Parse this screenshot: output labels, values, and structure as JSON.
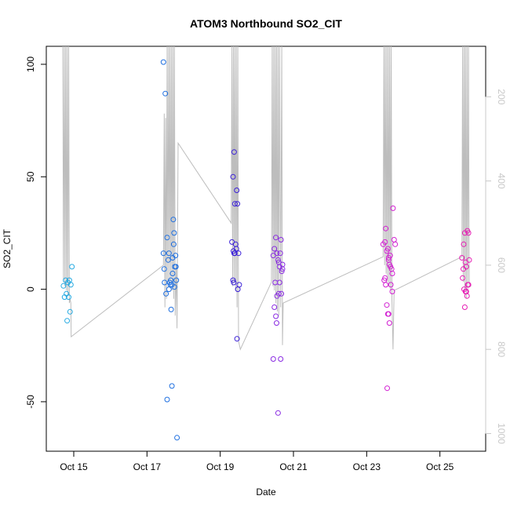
{
  "chart_data": {
    "type": "scatter",
    "title": "ATOM3 Northbound SO2_CIT",
    "xlabel": "Date",
    "ylabel": "SO2_CIT",
    "x_ticks": [
      "Oct 15",
      "Oct 17",
      "Oct 19",
      "Oct 21",
      "Oct 23",
      "Oct 25"
    ],
    "x_tick_days": [
      15,
      17,
      19,
      21,
      23,
      25
    ],
    "xlim_days": [
      14.25,
      26.25
    ],
    "ylim": [
      -72,
      108
    ],
    "y_ticks": [
      -50,
      0,
      50,
      100
    ],
    "y2_ticks": [
      200,
      400,
      600,
      800,
      1000
    ],
    "y2lim": [
      1042,
      80
    ],
    "y2_color": "#c8c8c8",
    "line_color": "#bdbdbd",
    "point_colors": {
      "Oct 14-15": "#27aae1",
      "Oct 17": "#1e6fe0",
      "Oct 19": "#3a1fd8",
      "Oct 20-21": "#8a2be2",
      "Oct 23": "#d21fd2",
      "Oct 25": "#e61fb4"
    },
    "series": [
      {
        "color": "#27aae1",
        "points": [
          [
            14.72,
            1.5
          ],
          [
            14.75,
            -3.5
          ],
          [
            14.78,
            4
          ],
          [
            14.8,
            -2
          ],
          [
            14.82,
            -14
          ],
          [
            14.84,
            3
          ],
          [
            14.86,
            -3.5
          ],
          [
            14.88,
            4
          ],
          [
            14.9,
            -10
          ],
          [
            14.92,
            2
          ],
          [
            14.95,
            10
          ]
        ]
      },
      {
        "color": "#1e6fe0",
        "points": [
          [
            17.45,
            101
          ],
          [
            17.5,
            87
          ],
          [
            17.45,
            16
          ],
          [
            17.48,
            3
          ],
          [
            17.52,
            -2
          ],
          [
            17.47,
            9
          ],
          [
            17.55,
            23
          ],
          [
            17.58,
            13
          ],
          [
            17.6,
            16
          ],
          [
            17.62,
            3
          ],
          [
            17.64,
            2
          ],
          [
            17.66,
            -9
          ],
          [
            17.6,
            0
          ],
          [
            17.65,
            4
          ],
          [
            17.68,
            2
          ],
          [
            17.7,
            14
          ],
          [
            17.72,
            31
          ],
          [
            17.74,
            25
          ],
          [
            17.76,
            10
          ],
          [
            17.78,
            15
          ],
          [
            17.8,
            4
          ],
          [
            17.7,
            7
          ],
          [
            17.68,
            -43
          ],
          [
            17.55,
            -49
          ],
          [
            17.82,
            -66
          ],
          [
            17.75,
            1
          ],
          [
            17.73,
            20
          ],
          [
            17.79,
            10
          ]
        ]
      },
      {
        "color": "#3a1fd8",
        "points": [
          [
            19.35,
            50
          ],
          [
            19.38,
            61
          ],
          [
            19.4,
            38
          ],
          [
            19.45,
            44
          ],
          [
            19.47,
            38
          ],
          [
            19.32,
            21
          ],
          [
            19.36,
            17
          ],
          [
            19.42,
            20
          ],
          [
            19.38,
            16
          ],
          [
            19.44,
            18
          ],
          [
            19.5,
            16
          ],
          [
            19.4,
            16
          ],
          [
            19.35,
            4
          ],
          [
            19.37,
            3
          ],
          [
            19.48,
            0
          ],
          [
            19.52,
            2
          ],
          [
            19.46,
            -22
          ]
        ]
      },
      {
        "color": "#8a2be2",
        "points": [
          [
            20.45,
            15
          ],
          [
            20.48,
            18
          ],
          [
            20.52,
            23
          ],
          [
            20.55,
            16
          ],
          [
            20.58,
            13
          ],
          [
            20.6,
            12
          ],
          [
            20.62,
            10
          ],
          [
            20.66,
            22
          ],
          [
            20.7,
            11
          ],
          [
            20.68,
            8
          ],
          [
            20.64,
            16
          ],
          [
            20.5,
            3
          ],
          [
            20.55,
            -3
          ],
          [
            20.6,
            -2
          ],
          [
            20.48,
            -8
          ],
          [
            20.52,
            -12
          ],
          [
            20.54,
            -15
          ],
          [
            20.45,
            -31
          ],
          [
            20.65,
            -31
          ],
          [
            20.58,
            -55
          ],
          [
            20.7,
            9
          ],
          [
            20.62,
            3
          ],
          [
            20.67,
            -2
          ]
        ]
      },
      {
        "color": "#d21fd2",
        "points": [
          [
            23.45,
            20
          ],
          [
            23.5,
            21
          ],
          [
            23.52,
            27
          ],
          [
            23.55,
            17
          ],
          [
            23.58,
            18
          ],
          [
            23.6,
            14
          ],
          [
            23.62,
            11
          ],
          [
            23.65,
            10
          ],
          [
            23.68,
            9
          ],
          [
            23.7,
            7
          ],
          [
            23.72,
            36
          ],
          [
            23.75,
            22
          ],
          [
            23.78,
            20
          ],
          [
            23.5,
            5
          ],
          [
            23.52,
            2
          ],
          [
            23.48,
            4
          ],
          [
            23.55,
            -7
          ],
          [
            23.58,
            -11
          ],
          [
            23.6,
            -11
          ],
          [
            23.62,
            -15
          ],
          [
            23.56,
            -44
          ],
          [
            23.66,
            2
          ],
          [
            23.7,
            -1
          ],
          [
            23.64,
            15
          ],
          [
            23.6,
            13
          ]
        ]
      },
      {
        "color": "#e61fb4",
        "points": [
          [
            25.6,
            14
          ],
          [
            25.65,
            20
          ],
          [
            25.68,
            25
          ],
          [
            25.7,
            12
          ],
          [
            25.72,
            10
          ],
          [
            25.75,
            26
          ],
          [
            25.78,
            25
          ],
          [
            25.8,
            13
          ],
          [
            25.62,
            5
          ],
          [
            25.66,
            0
          ],
          [
            25.7,
            -1
          ],
          [
            25.74,
            -3
          ],
          [
            25.76,
            2
          ],
          [
            25.78,
            2
          ],
          [
            25.68,
            -8
          ],
          [
            25.64,
            9
          ],
          [
            25.72,
            -1
          ]
        ]
      }
    ],
    "pressure_trace": [
      [
        14.7,
        80
      ],
      [
        14.72,
        640
      ],
      [
        14.74,
        80
      ],
      [
        14.76,
        650
      ],
      [
        14.78,
        80
      ],
      [
        14.8,
        660
      ],
      [
        14.82,
        80
      ],
      [
        14.84,
        670
      ],
      [
        14.86,
        80
      ],
      [
        14.88,
        690
      ],
      [
        14.9,
        680
      ],
      [
        14.92,
        690
      ],
      [
        14.93,
        770
      ],
      [
        17.45,
        600
      ],
      [
        17.47,
        240
      ],
      [
        17.49,
        700
      ],
      [
        17.51,
        250
      ],
      [
        17.53,
        680
      ],
      [
        17.55,
        80
      ],
      [
        17.57,
        640
      ],
      [
        17.59,
        80
      ],
      [
        17.61,
        650
      ],
      [
        17.63,
        80
      ],
      [
        17.65,
        640
      ],
      [
        17.67,
        80
      ],
      [
        17.69,
        660
      ],
      [
        17.71,
        80
      ],
      [
        17.73,
        680
      ],
      [
        17.75,
        80
      ],
      [
        17.77,
        720
      ],
      [
        17.8,
        600
      ],
      [
        17.82,
        750
      ],
      [
        17.85,
        310
      ],
      [
        19.3,
        500
      ],
      [
        19.32,
        80
      ],
      [
        19.34,
        650
      ],
      [
        19.36,
        80
      ],
      [
        19.38,
        640
      ],
      [
        19.4,
        80
      ],
      [
        19.42,
        660
      ],
      [
        19.44,
        80
      ],
      [
        19.46,
        700
      ],
      [
        19.48,
        80
      ],
      [
        19.5,
        780
      ],
      [
        19.55,
        800
      ],
      [
        20.4,
        640
      ],
      [
        20.42,
        80
      ],
      [
        20.44,
        650
      ],
      [
        20.46,
        80
      ],
      [
        20.48,
        660
      ],
      [
        20.5,
        80
      ],
      [
        20.52,
        690
      ],
      [
        20.54,
        80
      ],
      [
        20.56,
        710
      ],
      [
        20.58,
        80
      ],
      [
        20.6,
        720
      ],
      [
        20.62,
        80
      ],
      [
        20.65,
        700
      ],
      [
        20.68,
        80
      ],
      [
        20.7,
        790
      ],
      [
        20.72,
        690
      ],
      [
        23.45,
        580
      ],
      [
        23.47,
        80
      ],
      [
        23.49,
        600
      ],
      [
        23.51,
        80
      ],
      [
        23.53,
        620
      ],
      [
        23.55,
        80
      ],
      [
        23.57,
        640
      ],
      [
        23.59,
        80
      ],
      [
        23.61,
        650
      ],
      [
        23.63,
        80
      ],
      [
        23.65,
        660
      ],
      [
        23.67,
        80
      ],
      [
        23.69,
        680
      ],
      [
        23.72,
        800
      ],
      [
        23.75,
        660
      ],
      [
        25.6,
        580
      ],
      [
        25.62,
        80
      ],
      [
        25.64,
        640
      ],
      [
        25.66,
        80
      ],
      [
        25.68,
        660
      ],
      [
        25.7,
        80
      ],
      [
        25.72,
        680
      ],
      [
        25.74,
        80
      ],
      [
        25.76,
        660
      ],
      [
        25.78,
        80
      ],
      [
        25.8,
        640
      ],
      [
        25.85,
        650
      ]
    ]
  }
}
